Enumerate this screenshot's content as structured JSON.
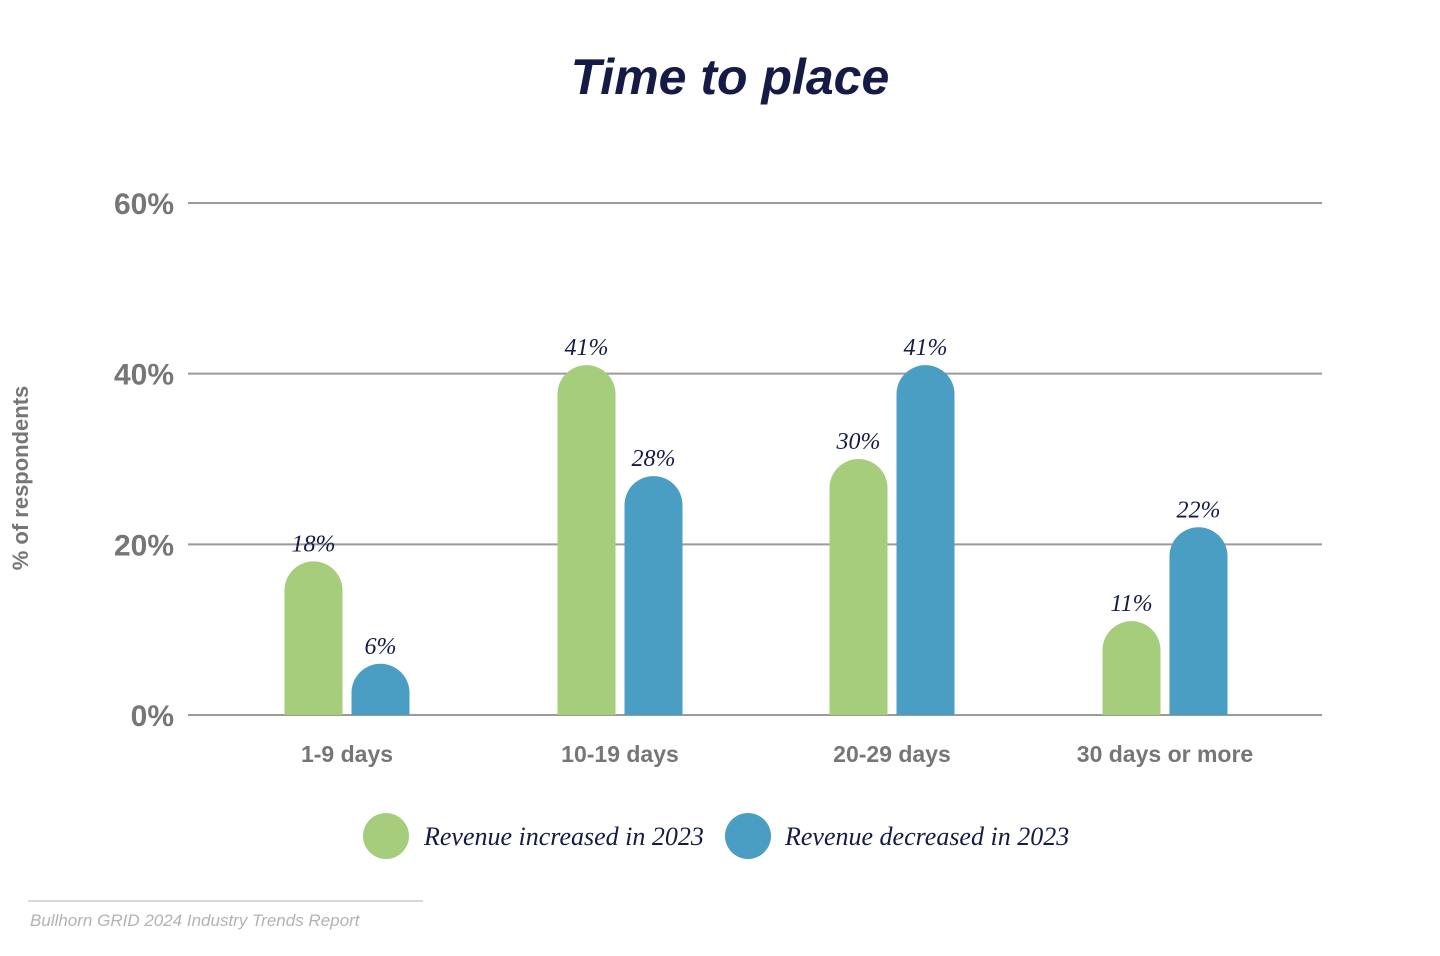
{
  "colors": {
    "series_1": "#a6cd7b",
    "series_2": "#4a9dc3",
    "title": "#161b45",
    "axis_text": "#767676",
    "grid": "#9a9a9a"
  },
  "source": "Bullhorn GRID 2024 Industry Trends Report",
  "chart_data": {
    "type": "bar",
    "title": "Time to place",
    "xlabel": "",
    "ylabel": "% of respondents",
    "ylim": [
      0,
      60
    ],
    "y_ticks": [
      "0%",
      "20%",
      "40%",
      "60%"
    ],
    "y_tick_values": [
      0,
      20,
      40,
      60
    ],
    "grid": true,
    "legend_position": "bottom-center",
    "categories": [
      "1-9 days",
      "10-19 days",
      "20-29 days",
      "30 days or more"
    ],
    "series": [
      {
        "name": "Revenue increased in 2023",
        "values": [
          18,
          41,
          30,
          11
        ],
        "labels": [
          "18%",
          "41%",
          "30%",
          "11%"
        ]
      },
      {
        "name": "Revenue decreased in 2023",
        "values": [
          6,
          28,
          41,
          22
        ],
        "labels": [
          "6%",
          "28%",
          "41%",
          "22%"
        ]
      }
    ]
  }
}
